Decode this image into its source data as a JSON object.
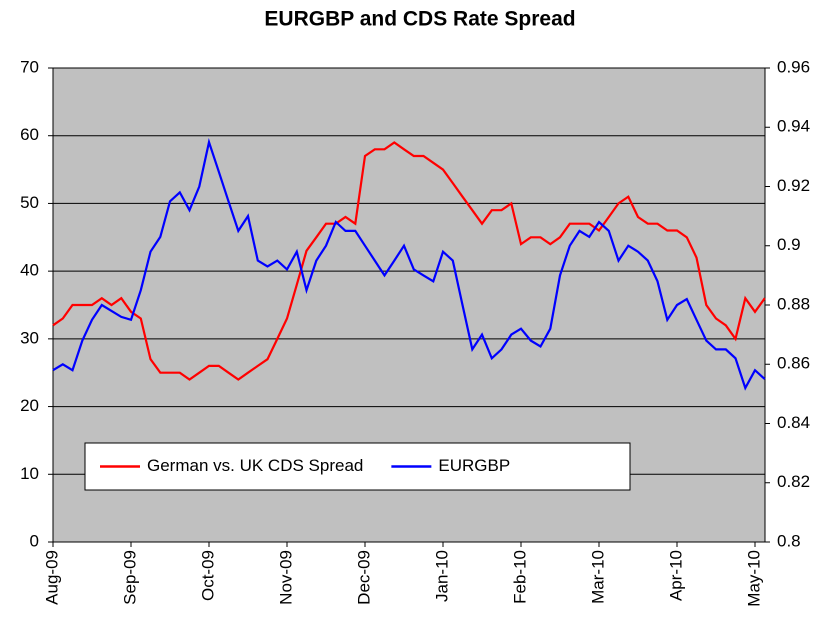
{
  "chart_data": {
    "type": "line",
    "title": "EURGBP and CDS Rate Spread",
    "categories": [
      "Aug-09",
      null,
      null,
      null,
      null,
      null,
      null,
      null,
      "Sep-09",
      null,
      null,
      null,
      null,
      null,
      null,
      null,
      "Oct-09",
      null,
      null,
      null,
      null,
      null,
      null,
      null,
      "Nov-09",
      null,
      null,
      null,
      null,
      null,
      null,
      null,
      "Dec-09",
      null,
      null,
      null,
      null,
      null,
      null,
      null,
      "Jan-10",
      null,
      null,
      null,
      null,
      null,
      null,
      null,
      "Feb-10",
      null,
      null,
      null,
      null,
      null,
      null,
      null,
      "Mar-10",
      null,
      null,
      null,
      null,
      null,
      null,
      null,
      "Apr-10",
      null,
      null,
      null,
      null,
      null,
      null,
      null,
      "May-10",
      null
    ],
    "series": [
      {
        "name": "German vs. UK CDS Spread",
        "color": "#ff0000",
        "axis": "y",
        "values": [
          32,
          33,
          35,
          35,
          35,
          36,
          35,
          36,
          34,
          33,
          27,
          25,
          25,
          25,
          24,
          25,
          26,
          26,
          25,
          24,
          25,
          26,
          27,
          30,
          33,
          38,
          43,
          45,
          47,
          47,
          48,
          47,
          57,
          58,
          58,
          59,
          58,
          57,
          57,
          56,
          55,
          53,
          51,
          49,
          47,
          49,
          49,
          50,
          44,
          45,
          45,
          44,
          45,
          47,
          47,
          47,
          46,
          48,
          50,
          51,
          48,
          47,
          47,
          46,
          46,
          45,
          42,
          35,
          33,
          32,
          30,
          36,
          34,
          36
        ]
      },
      {
        "name": "EURGBP",
        "color": "#0000ff",
        "axis": "y2",
        "values": [
          0.858,
          0.86,
          0.858,
          0.868,
          0.875,
          0.88,
          0.878,
          0.876,
          0.875,
          0.885,
          0.898,
          0.903,
          0.915,
          0.918,
          0.912,
          0.92,
          0.935,
          0.925,
          0.915,
          0.905,
          0.91,
          0.895,
          0.893,
          0.895,
          0.892,
          0.898,
          0.885,
          0.895,
          0.9,
          0.908,
          0.905,
          0.905,
          0.9,
          0.895,
          0.89,
          0.895,
          0.9,
          0.892,
          0.89,
          0.888,
          0.898,
          0.895,
          0.88,
          0.865,
          0.87,
          0.862,
          0.865,
          0.87,
          0.872,
          0.868,
          0.866,
          0.872,
          0.89,
          0.9,
          0.905,
          0.903,
          0.908,
          0.905,
          0.895,
          0.9,
          0.898,
          0.895,
          0.888,
          0.875,
          0.88,
          0.882,
          0.875,
          0.868,
          0.865,
          0.865,
          0.862,
          0.852,
          0.858,
          0.855
        ]
      }
    ],
    "ylim": [
      0,
      70
    ],
    "yticks": [
      0,
      10,
      20,
      30,
      40,
      50,
      60,
      70
    ],
    "y2lim": [
      0.8,
      0.96
    ],
    "y2ticks": [
      0.8,
      0.82,
      0.84,
      0.86,
      0.88,
      0.9,
      0.92,
      0.94,
      0.96
    ],
    "grid": true,
    "legend": "lower left"
  }
}
